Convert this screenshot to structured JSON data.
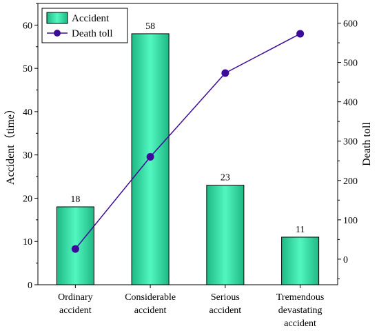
{
  "chart_data": {
    "type": "bar",
    "categories": [
      [
        "Ordinary",
        "accident"
      ],
      [
        "Considerable",
        "accident"
      ],
      [
        "Serious",
        "accident"
      ],
      [
        "Tremendous",
        "devastating",
        "accident"
      ]
    ],
    "series": [
      {
        "name": "Accident",
        "type": "bar",
        "axis": "left",
        "values": [
          18,
          58,
          23,
          11
        ],
        "color": "#2ee6a4"
      },
      {
        "name": "Death toll",
        "type": "line",
        "axis": "right",
        "values": [
          26,
          260,
          473,
          573
        ],
        "color": "#3d0b99"
      }
    ],
    "data_labels": [
      "18",
      "58",
      "23",
      "11"
    ],
    "ylabel_left": "Accident（time）",
    "ylabel_right": "Death toll",
    "ylim_left": [
      0,
      65
    ],
    "ylim_right": [
      -65,
      650
    ],
    "yticks_left": [
      0,
      10,
      20,
      30,
      40,
      50,
      60
    ],
    "yticks_right": [
      0,
      100,
      200,
      300,
      400,
      500,
      600
    ],
    "legend": [
      "Accident",
      "Death toll"
    ],
    "legend_position": "top-left",
    "grid": false
  }
}
